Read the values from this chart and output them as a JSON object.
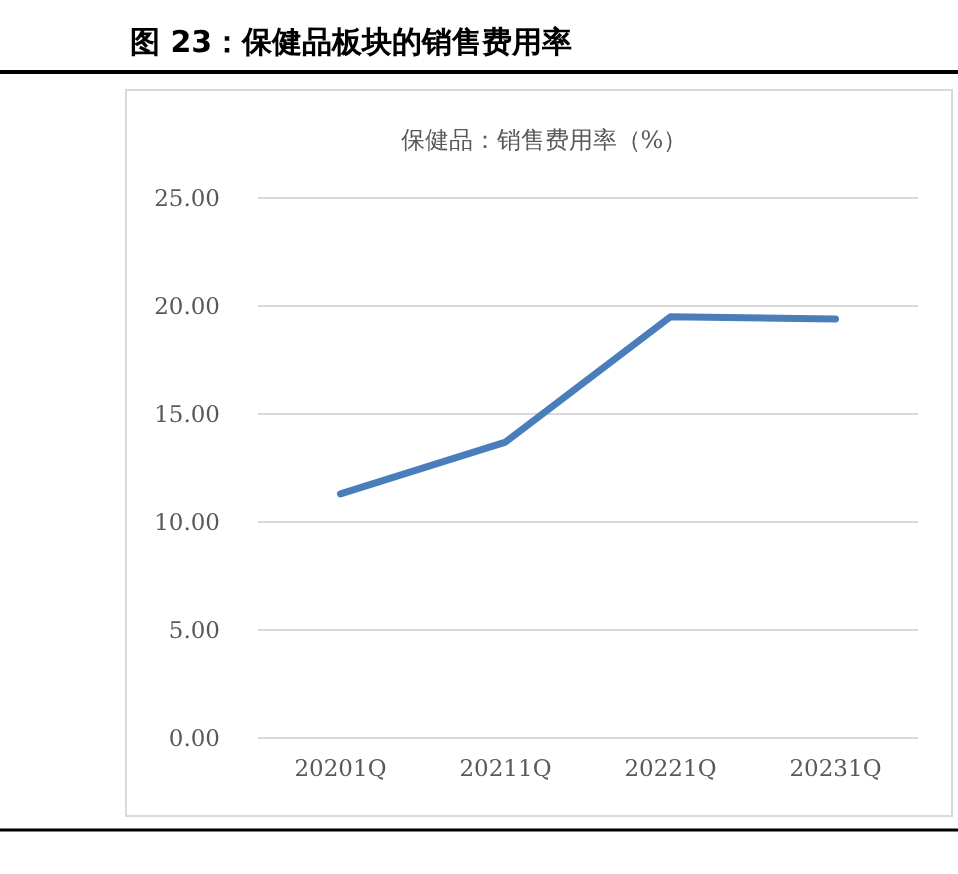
{
  "chart_data": {
    "type": "line",
    "title": "图 23：保健品板块的销售费用率",
    "subtitle": "保健品：销售费用率（%）",
    "categories": [
      "20201Q",
      "20211Q",
      "20221Q",
      "20231Q"
    ],
    "series": [
      {
        "color": "#4a7ebb",
        "values": [
          11.3,
          13.7,
          19.5,
          19.4
        ]
      }
    ],
    "ylim": [
      0,
      25
    ],
    "yticks": [
      {
        "value": 0,
        "label": "0.00"
      },
      {
        "value": 5,
        "label": "5.00"
      },
      {
        "value": 10,
        "label": "10.00"
      },
      {
        "value": 15,
        "label": "15.00"
      },
      {
        "value": 20,
        "label": "20.00"
      },
      {
        "value": 25,
        "label": "25.00"
      }
    ],
    "grid": "y",
    "marker": "none",
    "line_style": "solid"
  }
}
